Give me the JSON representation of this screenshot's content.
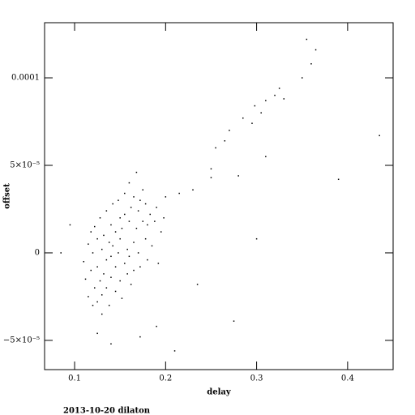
{
  "chart_data": {
    "type": "scatter",
    "x_label": "delay",
    "y_label": "offset",
    "caption": "2013-10-20 dilaton",
    "color": "#000000",
    "xlim": [
      0.067,
      0.45
    ],
    "ylim": [
      -6.67e-05,
      0.0001315
    ],
    "xticks": [
      0.1,
      0.2,
      0.3,
      0.4
    ],
    "yticks": [
      {
        "value": -5e-05,
        "label": "−5×10⁻⁵"
      },
      0,
      {
        "value": 5e-05,
        "label": "5×10⁻⁵"
      },
      0.0001
    ],
    "x": [
      0.11,
      0.112,
      0.115,
      0.115,
      0.118,
      0.118,
      0.12,
      0.12,
      0.122,
      0.122,
      0.125,
      0.125,
      0.125,
      0.128,
      0.128,
      0.13,
      0.13,
      0.13,
      0.132,
      0.132,
      0.135,
      0.135,
      0.135,
      0.138,
      0.138,
      0.14,
      0.14,
      0.14,
      0.142,
      0.142,
      0.145,
      0.145,
      0.145,
      0.148,
      0.148,
      0.15,
      0.15,
      0.15,
      0.152,
      0.152,
      0.155,
      0.155,
      0.155,
      0.158,
      0.158,
      0.16,
      0.16,
      0.16,
      0.162,
      0.162,
      0.165,
      0.165,
      0.165,
      0.168,
      0.168,
      0.17,
      0.17,
      0.172,
      0.172,
      0.175,
      0.175,
      0.178,
      0.178,
      0.18,
      0.18,
      0.183,
      0.185,
      0.188,
      0.19,
      0.192,
      0.195,
      0.198,
      0.085,
      0.095,
      0.125,
      0.14,
      0.172,
      0.19,
      0.21,
      0.235,
      0.2,
      0.215,
      0.23,
      0.25,
      0.255,
      0.265,
      0.27,
      0.275,
      0.28,
      0.295,
      0.298,
      0.3,
      0.305,
      0.31,
      0.31,
      0.32,
      0.325,
      0.33,
      0.35,
      0.355,
      0.36,
      0.365,
      0.39,
      0.435,
      0.25,
      0.285
    ],
    "y": [
      -5e-06,
      -1.5e-05,
      5e-06,
      -2.5e-05,
      -1e-05,
      1.2e-05,
      -3e-05,
      0,
      -2e-05,
      1.5e-05,
      -8e-06,
      -2.8e-05,
      8e-06,
      -1.6e-05,
      2e-05,
      2e-06,
      -2.4e-05,
      -3.5e-05,
      1e-05,
      -1.2e-05,
      -4e-06,
      2.4e-05,
      -2e-05,
      6e-06,
      -3e-05,
      1.6e-05,
      -1.4e-05,
      -2e-06,
      2.8e-05,
      4e-06,
      -2.2e-05,
      1.2e-05,
      -8e-06,
      3e-05,
      0,
      2e-05,
      -1.6e-05,
      8e-06,
      -2.6e-05,
      1.4e-05,
      3.4e-05,
      -6e-06,
      2.2e-05,
      2e-06,
      -1.2e-05,
      4e-05,
      1.8e-05,
      -2e-06,
      2.6e-05,
      -1.8e-05,
      3.2e-05,
      6e-06,
      -1e-05,
      1.4e-05,
      4.6e-05,
      2.4e-05,
      0,
      3e-05,
      -8e-06,
      1.8e-05,
      3.6e-05,
      8e-06,
      2.8e-05,
      1.6e-05,
      -4e-06,
      2.2e-05,
      4e-06,
      1.8e-05,
      2.6e-05,
      -6e-06,
      1.2e-05,
      2e-05,
      0,
      1.6e-05,
      -4.6e-05,
      -5.2e-05,
      -4.8e-05,
      -4.2e-05,
      -5.6e-05,
      -1.8e-05,
      3.2e-05,
      3.4e-05,
      3.6e-05,
      4.8e-05,
      6e-05,
      6.4e-05,
      7e-05,
      -3.9e-05,
      4.4e-05,
      7.4e-05,
      8.4e-05,
      8e-06,
      8e-05,
      8.7e-05,
      5.5e-05,
      9e-05,
      9.4e-05,
      8.8e-05,
      0.0001,
      0.000122,
      0.000108,
      0.000116,
      4.2e-05,
      6.7e-05,
      4.3e-05,
      7.7e-05
    ]
  }
}
